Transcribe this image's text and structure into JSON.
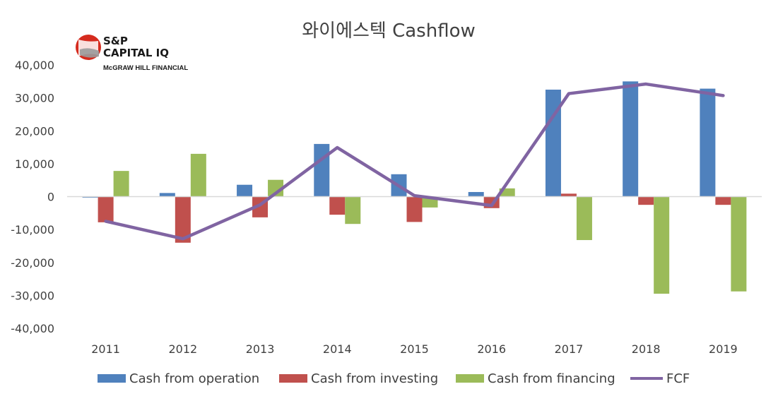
{
  "logo": {
    "line1": "S&P",
    "line2": "CAPITAL IQ",
    "line3": "McGRAW HILL FINANCIAL"
  },
  "chart_data": {
    "type": "bar",
    "title": "와이에스텍 Cashflow",
    "xlabel": "",
    "ylabel": "",
    "ylim": [
      -40000,
      40000
    ],
    "ytick_labels": [
      "40,000",
      "30,000",
      "20,000",
      "10,000",
      "0",
      "-10,000",
      "-20,000",
      "-30,000",
      "-40,000"
    ],
    "yticks": [
      40000,
      30000,
      20000,
      10000,
      0,
      -10000,
      -20000,
      -30000,
      -40000
    ],
    "categories": [
      "2011",
      "2012",
      "2013",
      "2014",
      "2015",
      "2016",
      "2017",
      "2018",
      "2019"
    ],
    "series": [
      {
        "name": "Cash from operation",
        "kind": "bar",
        "color": "#4f81bd",
        "values": [
          -300,
          1100,
          3600,
          16000,
          6800,
          1400,
          32500,
          35000,
          32800
        ]
      },
      {
        "name": "Cash from investing",
        "kind": "bar",
        "color": "#c0504d",
        "values": [
          -7800,
          -14000,
          -6300,
          -5500,
          -7700,
          -3500,
          900,
          -2500,
          -2500
        ]
      },
      {
        "name": "Cash from financing",
        "kind": "bar",
        "color": "#9bbb59",
        "values": [
          7800,
          13000,
          5100,
          -8300,
          -3300,
          2500,
          -13200,
          -29500,
          -28800
        ]
      },
      {
        "name": "FCF",
        "kind": "line",
        "color": "#8064a2",
        "values": [
          -7500,
          -12800,
          -2500,
          14900,
          300,
          -2700,
          31300,
          34200,
          30700
        ]
      }
    ],
    "grid": false,
    "zero_line": true,
    "legend_position": "bottom"
  }
}
